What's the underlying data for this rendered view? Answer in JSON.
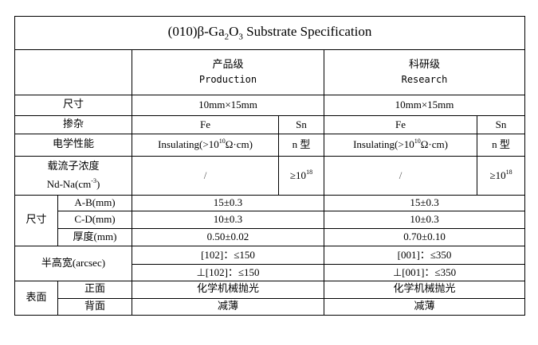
{
  "title": {
    "prefix": "(010)β-Ga",
    "sub1": "2",
    "mid": "O",
    "sub2": "3",
    "suffix": " Substrate Specification"
  },
  "headers": {
    "production": {
      "zh": "产品级",
      "en": "Production"
    },
    "research": {
      "zh": "科研级",
      "en": "Research"
    }
  },
  "rows": {
    "size": {
      "label": "尺寸",
      "production": "10mm×15mm",
      "research": "10mm×15mm"
    },
    "dopant": {
      "label": "掺杂",
      "p_fe": "Fe",
      "p_sn": "Sn",
      "r_fe": "Fe",
      "r_sn": "Sn"
    },
    "electrical": {
      "label": "电学性能",
      "insulating": "Insulating(>10",
      "exp": "10",
      "unit": "Ω·cm)",
      "ntype": "n 型"
    },
    "carrier": {
      "label_zh": "载流子浓度",
      "label_en": "Nd-Na(cm",
      "label_exp": "-3",
      "label_close": ")",
      "fe": "/",
      "sn": "≥10",
      "sn_exp": "18"
    },
    "dimensions": {
      "label": "尺寸",
      "items": [
        {
          "label": "A-B(mm)",
          "production": "15±0.3",
          "research": "15±0.3"
        },
        {
          "label": "C-D(mm)",
          "production": "10±0.3",
          "research": "10±0.3"
        },
        {
          "label": "厚度(mm)",
          "production": "0.50±0.02",
          "research": "0.70±0.10"
        }
      ]
    },
    "fwhm": {
      "label": "半高宽(arcsec)",
      "production": [
        "[102]：≤150",
        "⊥[102]：≤150"
      ],
      "research": [
        "[001]：≤350",
        "⊥[001]：≤350"
      ]
    },
    "surface": {
      "label": "表面",
      "front": {
        "label": "正面",
        "production": "化学机械抛光",
        "research": "化学机械抛光"
      },
      "back": {
        "label": "背面",
        "production": "减薄",
        "research": "减薄"
      }
    }
  }
}
